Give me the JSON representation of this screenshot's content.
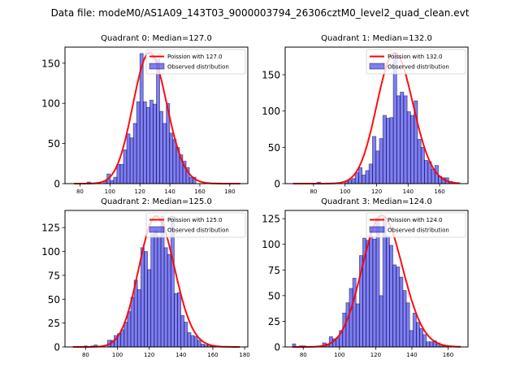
{
  "figure": {
    "suptitle": "Data file: modeM0/AS1A09_143T03_9000003794_26306cztM0_level2_quad_clean.evt"
  },
  "chart_data": [
    {
      "type": "bar",
      "title": "Quadrant 0: Median=127.0",
      "xlabel": "",
      "ylabel": "",
      "xlim": [
        70,
        192
      ],
      "ylim": [
        0,
        170
      ],
      "xticks": [
        80,
        100,
        120,
        140,
        160,
        180
      ],
      "yticks": [
        0,
        50,
        100,
        150
      ],
      "legend": {
        "placement": "upper-right",
        "entries": [
          "Poission with 127.0",
          "Observed distribution"
        ]
      },
      "hist": {
        "bin_start": 84.8,
        "bin_width": 2.2,
        "counts": [
          2,
          0,
          0,
          1,
          0,
          3,
          12,
          4,
          8,
          24,
          24,
          42,
          62,
          57,
          75,
          102,
          162,
          102,
          95,
          104,
          99,
          155,
          90,
          75,
          100,
          63,
          55,
          45,
          36,
          28,
          20,
          8,
          8,
          0,
          0
        ]
      },
      "poisson": {
        "mean": 127.0,
        "scale": 163,
        "x_range": [
          76,
          187
        ]
      }
    },
    {
      "type": "bar",
      "title": "Quadrant 1: Median=132.0",
      "xlabel": "",
      "ylabel": "",
      "xlim": [
        62,
        178
      ],
      "ylim": [
        0,
        188
      ],
      "xticks": [
        80,
        100,
        120,
        140,
        160
      ],
      "yticks": [
        0,
        50,
        100,
        150
      ],
      "legend": {
        "placement": "upper-right",
        "entries": [
          "Poission with 132.0",
          "Observed distribution"
        ]
      },
      "hist": {
        "bin_start": 82.2,
        "bin_width": 2.2,
        "counts": [
          2,
          0,
          0,
          0,
          0,
          0,
          0,
          0,
          3,
          5,
          7,
          15,
          22,
          12,
          18,
          27,
          65,
          45,
          62,
          94,
          90,
          91,
          178,
          121,
          126,
          121,
          99,
          94,
          114,
          61,
          50,
          32,
          30,
          20,
          25,
          10,
          8,
          8,
          3
        ]
      },
      "poisson": {
        "mean": 132.0,
        "scale": 180,
        "x_range": [
          67,
          173
        ]
      }
    },
    {
      "type": "bar",
      "title": "Quadrant 2: Median=125.0",
      "xlabel": "",
      "ylabel": "",
      "xlim": [
        67,
        182
      ],
      "ylim": [
        0,
        143
      ],
      "xticks": [
        80,
        100,
        120,
        140,
        160,
        180
      ],
      "yticks": [
        0,
        25,
        50,
        75,
        100,
        125
      ],
      "legend": {
        "placement": "upper-right",
        "entries": [
          "Poission with 125.0",
          "Observed distribution"
        ]
      },
      "hist": {
        "bin_start": 79.0,
        "bin_width": 2.1,
        "counts": [
          1,
          0,
          1,
          2,
          0,
          0,
          0,
          7,
          7,
          12,
          14,
          18,
          26,
          37,
          52,
          70,
          60,
          104,
          100,
          81,
          118,
          122,
          116,
          137,
          104,
          97,
          137,
          56,
          57,
          33,
          26,
          15,
          12,
          11,
          7,
          3,
          2,
          2,
          1
        ]
      },
      "poisson": {
        "mean": 125.0,
        "scale": 137,
        "x_range": [
          72,
          177
        ]
      }
    },
    {
      "type": "bar",
      "title": "Quadrant 3: Median=124.0",
      "xlabel": "",
      "ylabel": "",
      "xlim": [
        70,
        171
      ],
      "ylim": [
        0,
        133
      ],
      "xticks": [
        80,
        100,
        120,
        140,
        160
      ],
      "yticks": [
        0,
        25,
        50,
        75,
        100,
        125
      ],
      "legend": {
        "placement": "upper-right",
        "entries": [
          "Poission with 124.0",
          "Observed distribution"
        ]
      },
      "hist": {
        "bin_start": 74.0,
        "bin_width": 1.85,
        "counts": [
          3,
          0,
          1,
          1,
          0,
          0,
          0,
          0,
          0,
          4,
          3,
          10,
          8,
          9,
          16,
          33,
          43,
          57,
          67,
          42,
          89,
          106,
          104,
          108,
          105,
          126,
          50,
          126,
          108,
          99,
          80,
          78,
          68,
          55,
          43,
          16,
          33,
          24,
          18,
          12,
          5,
          5,
          6,
          4,
          1,
          1
        ]
      },
      "poisson": {
        "mean": 124.0,
        "scale": 128,
        "x_range": [
          74,
          167
        ]
      }
    }
  ]
}
